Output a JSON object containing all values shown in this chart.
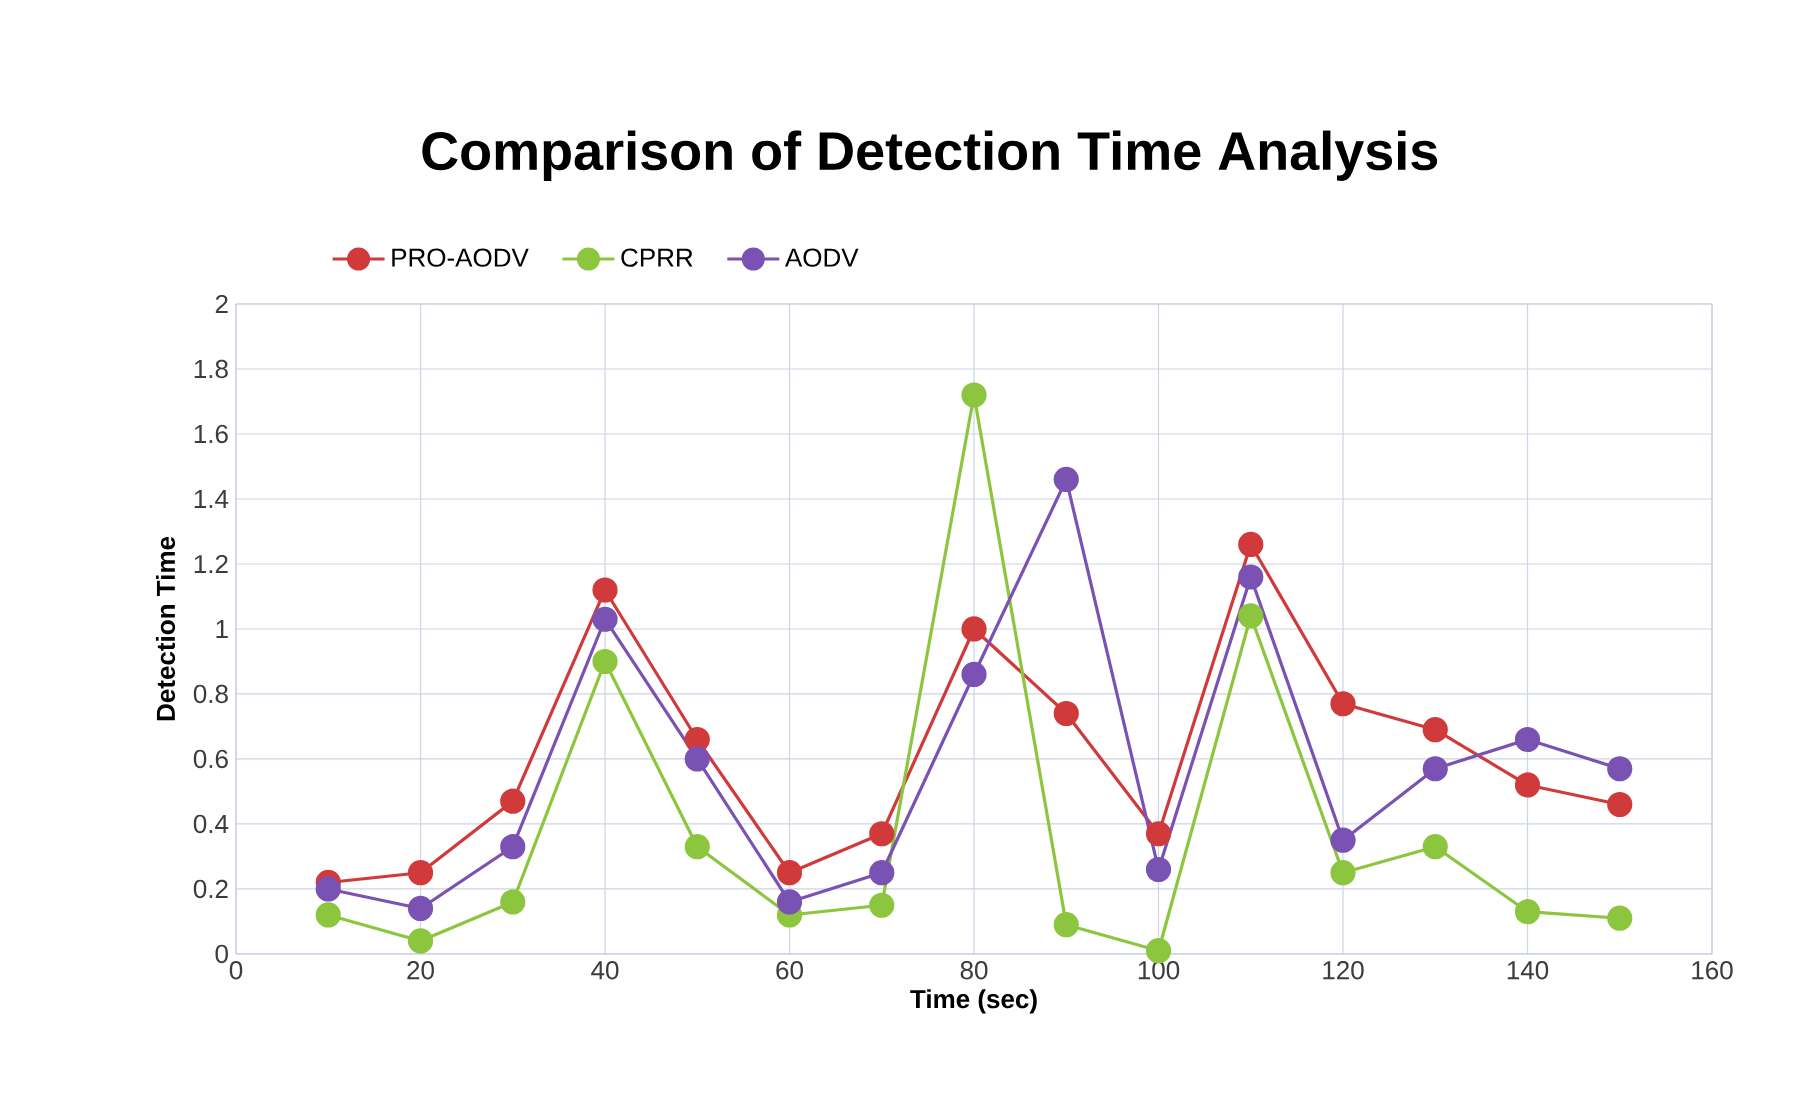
{
  "chart_data": {
    "type": "line",
    "title": "Comparison of Detection Time Analysis",
    "xlabel": "Time (sec)",
    "ylabel": "Detection Time",
    "x": [
      10,
      20,
      30,
      40,
      50,
      60,
      70,
      80,
      90,
      100,
      110,
      120,
      130,
      140,
      150
    ],
    "series": [
      {
        "name": "PRO-AODV",
        "color": "#d03a3a",
        "values": [
          0.22,
          0.25,
          0.47,
          1.12,
          0.66,
          0.25,
          0.37,
          1.0,
          0.74,
          0.37,
          1.26,
          0.77,
          0.69,
          0.52,
          0.46
        ]
      },
      {
        "name": "CPRR",
        "color": "#8cc63f",
        "values": [
          0.12,
          0.04,
          0.16,
          0.9,
          0.33,
          0.12,
          0.15,
          1.72,
          0.09,
          0.01,
          1.04,
          0.25,
          0.33,
          0.13,
          0.11
        ]
      },
      {
        "name": "AODV",
        "color": "#7a52b3",
        "values": [
          0.2,
          0.14,
          0.33,
          1.03,
          0.6,
          0.16,
          0.25,
          0.86,
          1.46,
          0.26,
          1.16,
          0.35,
          0.57,
          0.66,
          0.57
        ]
      }
    ],
    "xlim": [
      0,
      160
    ],
    "xticks": [
      0,
      20,
      40,
      60,
      80,
      100,
      120,
      140,
      160
    ],
    "ylim": [
      0,
      2
    ],
    "yticks": [
      0,
      0.2,
      0.4,
      0.6,
      0.8,
      1,
      1.2,
      1.4,
      1.6,
      1.8,
      2
    ],
    "grid": true,
    "legend": "top",
    "marker": "circle",
    "line_style": "solid"
  }
}
